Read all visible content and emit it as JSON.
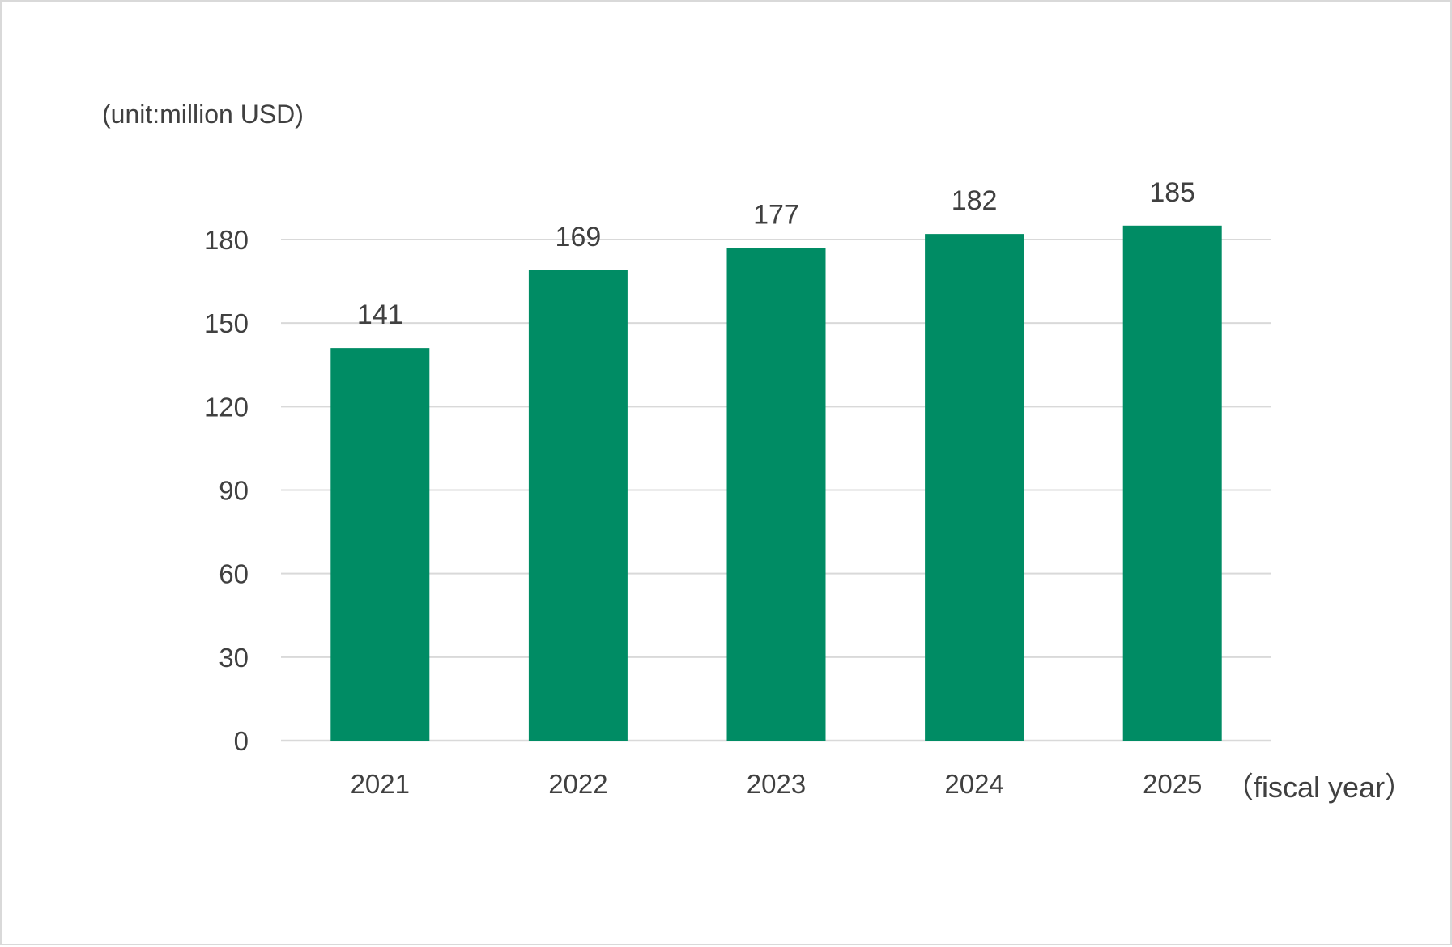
{
  "chart_data": {
    "type": "bar",
    "title": "",
    "unit_label": "(unit:million USD)",
    "xlabel": "（fiscal year）",
    "ylabel": "",
    "categories": [
      "2021",
      "2022",
      "2023",
      "2024",
      "2025"
    ],
    "values": [
      141,
      169,
      177,
      182,
      185
    ],
    "ylim": [
      0,
      180
    ],
    "yticks": [
      0,
      30,
      60,
      90,
      120,
      150,
      180
    ],
    "grid": true,
    "bar_color": "#008c64",
    "grid_color": "#d9d9d9",
    "legend": "none"
  }
}
